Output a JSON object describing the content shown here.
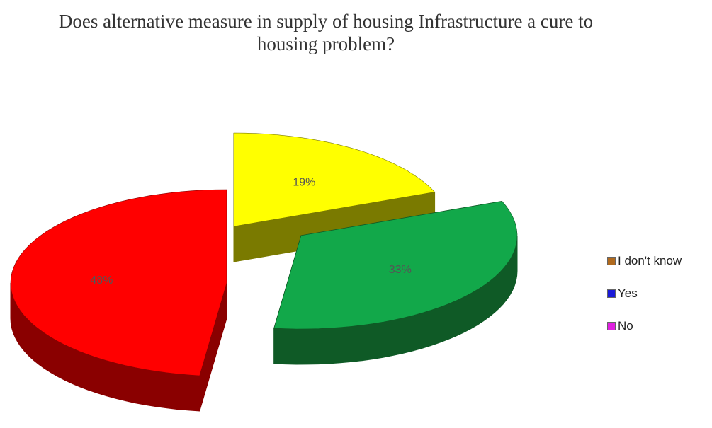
{
  "chart_data": {
    "type": "pie",
    "title_lines": [
      "Does alternative measure in supply of housing Infrastructure a cure to",
      "housing problem?"
    ],
    "slices": [
      {
        "label": "I don't know",
        "value": 19,
        "display": "19%",
        "top_color": "#ffff00",
        "side_color": "#7a7a00",
        "legend_color": "#b06a1e"
      },
      {
        "label": "Yes",
        "value": 33,
        "display": "33%",
        "top_color": "#12a84a",
        "side_color": "#0f5a26",
        "legend_color": "#1a1ad8"
      },
      {
        "label": "No",
        "value": 48,
        "display": "48%",
        "top_color": "#ff0000",
        "side_color": "#8a0000",
        "legend_color": "#e020e0"
      }
    ],
    "legend": {
      "position": "right",
      "items": [
        {
          "label": "I don't know",
          "color": "#b06a1e"
        },
        {
          "label": "Yes",
          "color": "#1a1ad8"
        },
        {
          "label": "No",
          "color": "#e020e0"
        }
      ]
    }
  }
}
